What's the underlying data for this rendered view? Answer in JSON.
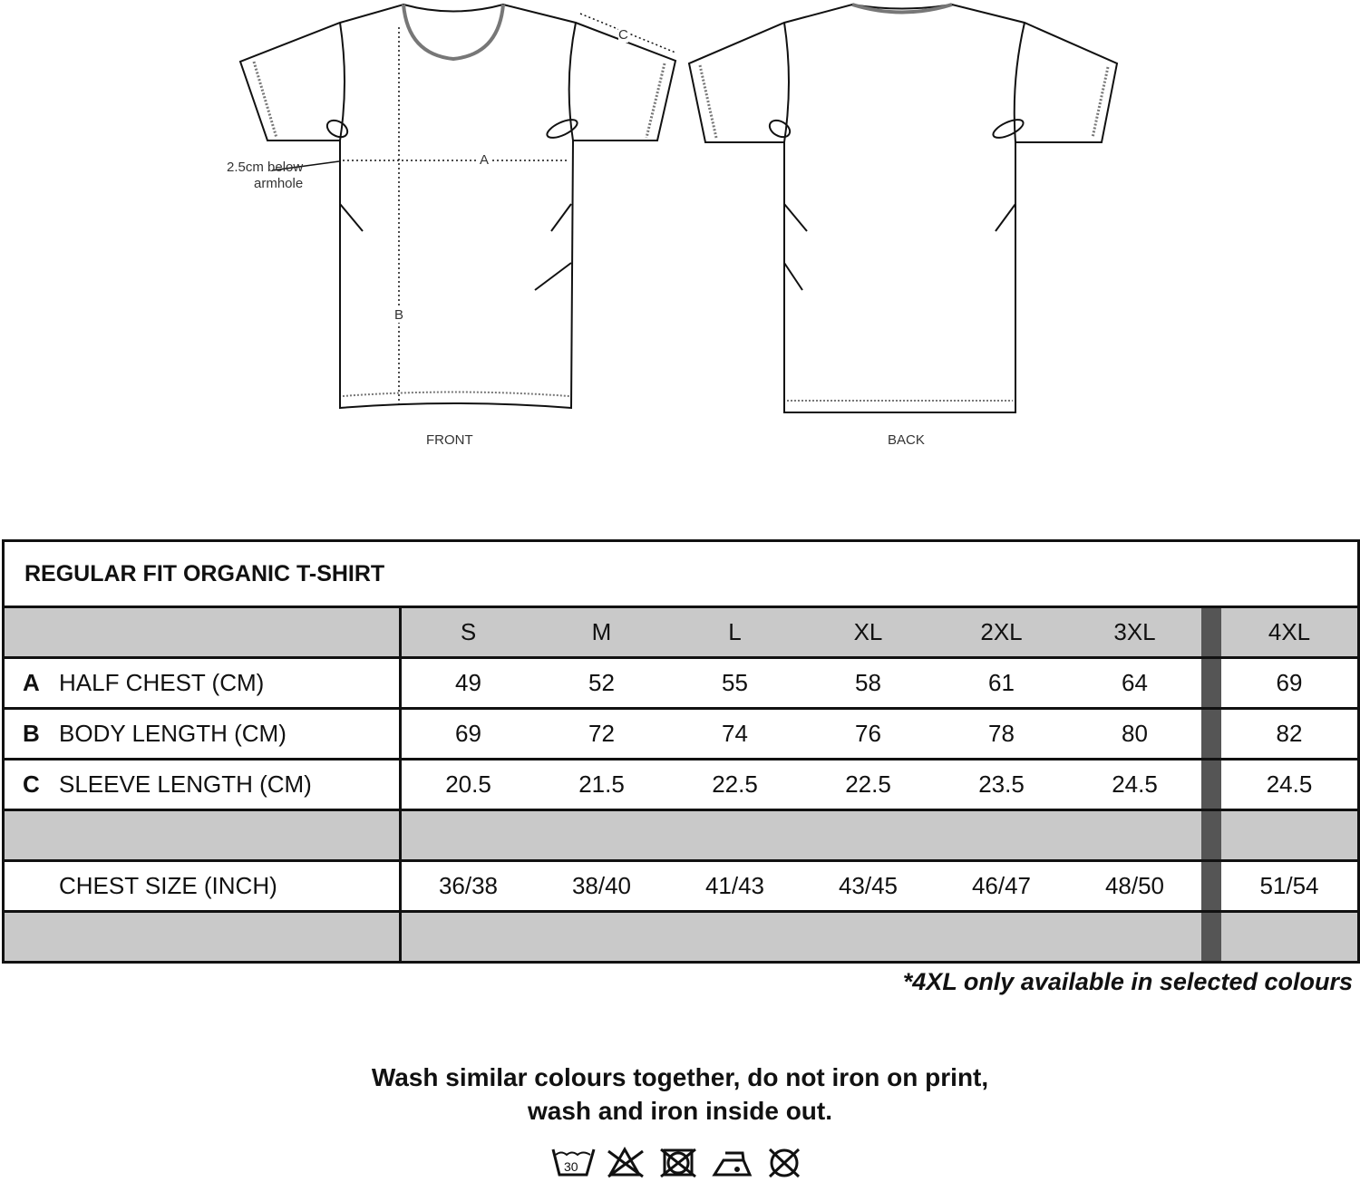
{
  "diagram": {
    "front_label": "FRONT",
    "back_label": "BACK",
    "dim_a": "A",
    "dim_b": "B",
    "dim_c": "C",
    "armhole_note_1": "2.5cm below",
    "armhole_note_2": "armhole"
  },
  "table": {
    "title": "REGULAR FIT ORGANIC T-SHIRT",
    "sizes": [
      "S",
      "M",
      "L",
      "XL",
      "2XL",
      "3XL",
      "4XL"
    ],
    "rows": [
      {
        "letter": "A",
        "label": "HALF CHEST (CM)",
        "values": [
          "49",
          "52",
          "55",
          "58",
          "61",
          "64",
          "69"
        ]
      },
      {
        "letter": "B",
        "label": "BODY LENGTH (CM)",
        "values": [
          "69",
          "72",
          "74",
          "76",
          "78",
          "80",
          "82"
        ]
      },
      {
        "letter": "C",
        "label": "SLEEVE LENGTH (CM)",
        "values": [
          "20.5",
          "21.5",
          "22.5",
          "22.5",
          "23.5",
          "24.5",
          "24.5"
        ]
      }
    ],
    "chest": {
      "label": "CHEST SIZE (INCH)",
      "values": [
        "36/38",
        "38/40",
        "41/43",
        "43/45",
        "46/47",
        "48/50",
        "51/54"
      ]
    },
    "header_color": "#c9c9c9",
    "separator_color": "#555555"
  },
  "footnote": "*4XL only available in selected colours",
  "care": {
    "line1": "Wash similar colours together, do not iron on print,",
    "line2": "wash and iron inside out.",
    "icons": [
      "wash-30-icon",
      "do-not-bleach-icon",
      "do-not-tumble-dry-icon",
      "iron-low-icon",
      "do-not-dry-clean-icon"
    ],
    "wash_temp": "30"
  }
}
